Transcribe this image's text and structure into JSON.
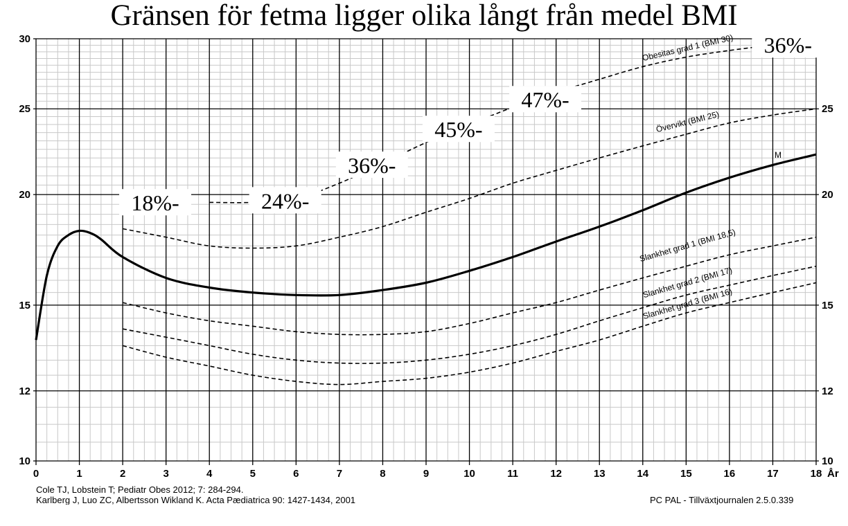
{
  "title": "Gränsen för fetma ligger olika långt från medel BMI",
  "footer": {
    "ref1": "Cole TJ, Lobstein T; Pediatr Obes 2012; 7: 284-294.",
    "ref2": "Karlberg J, Luo ZC, Albertsson Wikland K. Acta Pædiatrica 90: 1427-1434, 2001",
    "software": "PC PAL - Tillväxtjournalen 2.5.0.339"
  },
  "chart_data": {
    "type": "line",
    "title": "Gränsen för fetma ligger olika långt från medel BMI",
    "xlabel": "År",
    "ylabel": "",
    "xlim": [
      0,
      18
    ],
    "ylim": [
      10,
      30
    ],
    "y_scale": "log",
    "grid": true,
    "x_ticks": [
      "0",
      "1",
      "2",
      "3",
      "4",
      "5",
      "6",
      "7",
      "8",
      "9",
      "10",
      "11",
      "12",
      "13",
      "14",
      "15",
      "16",
      "17",
      "18"
    ],
    "y_ticks": [
      "10",
      "12",
      "15",
      "20",
      "25",
      "30"
    ],
    "series": [
      {
        "name": "Obesitas grad 1 (BMI 30)",
        "style": "dashed",
        "x": [
          4.0,
          5.0,
          6.0,
          7.0,
          8.0,
          9.0,
          10.0,
          11.0,
          12.0,
          13.0,
          14.0,
          15.0,
          16.0,
          17.0,
          18.0
        ],
        "y": [
          19.6,
          19.6,
          19.8,
          20.6,
          21.7,
          22.9,
          24.0,
          25.1,
          26.1,
          27.0,
          27.9,
          28.6,
          29.1,
          29.5,
          29.8
        ]
      },
      {
        "name": "Övervikt (BMI 25)",
        "style": "dashed",
        "x": [
          2.0,
          3.0,
          4.0,
          5.0,
          6.0,
          7.0,
          8.0,
          9.0,
          10.0,
          11.0,
          12.0,
          13.0,
          14.0,
          15.0,
          16.0,
          17.0,
          18.0
        ],
        "y": [
          18.3,
          17.9,
          17.5,
          17.4,
          17.5,
          17.9,
          18.4,
          19.1,
          19.8,
          20.6,
          21.3,
          22.0,
          22.7,
          23.4,
          24.1,
          24.6,
          25.0
        ]
      },
      {
        "name": "M",
        "style": "solid",
        "x": [
          0.0,
          0.25,
          0.5,
          0.75,
          1.0,
          1.25,
          1.5,
          2.0,
          3.0,
          4.0,
          5.0,
          6.0,
          7.0,
          8.0,
          9.0,
          10.0,
          11.0,
          12.0,
          13.0,
          14.0,
          15.0,
          16.0,
          17.0,
          18.0
        ],
        "y": [
          13.7,
          16.2,
          17.5,
          18.0,
          18.2,
          18.1,
          17.8,
          17.0,
          16.1,
          15.7,
          15.5,
          15.4,
          15.4,
          15.6,
          15.9,
          16.4,
          17.0,
          17.7,
          18.4,
          19.2,
          20.1,
          20.9,
          21.6,
          22.2
        ]
      },
      {
        "name": "Slankhet grad 1 (BMI 18,5)",
        "style": "dashed",
        "x": [
          2.0,
          3.0,
          4.0,
          5.0,
          6.0,
          7.0,
          8.0,
          9.0,
          10.0,
          11.0,
          12.0,
          13.0,
          14.0,
          15.0,
          16.0,
          17.0,
          18.0
        ],
        "y": [
          15.1,
          14.7,
          14.4,
          14.2,
          14.0,
          13.9,
          13.9,
          14.0,
          14.3,
          14.7,
          15.1,
          15.6,
          16.1,
          16.6,
          17.1,
          17.5,
          17.9
        ]
      },
      {
        "name": "Slankhet grad 2 (BMI 17)",
        "style": "dashed",
        "x": [
          2.0,
          3.0,
          4.0,
          5.0,
          6.0,
          7.0,
          8.0,
          9.0,
          10.0,
          11.0,
          12.0,
          13.0,
          14.0,
          15.0,
          16.0,
          17.0,
          18.0
        ],
        "y": [
          14.1,
          13.8,
          13.5,
          13.2,
          13.0,
          12.9,
          12.9,
          13.0,
          13.2,
          13.5,
          13.9,
          14.4,
          14.9,
          15.4,
          15.8,
          16.2,
          16.6
        ]
      },
      {
        "name": "Slankhet grad 3 (BMI 16)",
        "style": "dashed",
        "x": [
          2.0,
          3.0,
          4.0,
          5.0,
          6.0,
          7.0,
          8.0,
          9.0,
          10.0,
          11.0,
          12.0,
          13.0,
          14.0,
          15.0,
          16.0,
          17.0,
          18.0
        ],
        "y": [
          13.5,
          13.1,
          12.8,
          12.5,
          12.3,
          12.2,
          12.3,
          12.4,
          12.6,
          12.9,
          13.3,
          13.7,
          14.2,
          14.7,
          15.1,
          15.5,
          15.9
        ]
      }
    ],
    "annotations": [
      {
        "text": "18%-",
        "x": 2.75,
        "y": 19.5
      },
      {
        "text": "24%-",
        "x": 5.75,
        "y": 19.6
      },
      {
        "text": "36%-",
        "x": 7.75,
        "y": 21.5
      },
      {
        "text": "45%-",
        "x": 9.75,
        "y": 23.6
      },
      {
        "text": "47%-",
        "x": 11.75,
        "y": 25.5
      },
      {
        "text": "36%-",
        "x": 17.35,
        "y": 29.4
      }
    ]
  }
}
